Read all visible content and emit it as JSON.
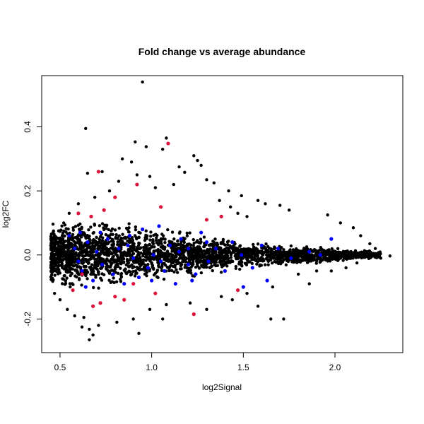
{
  "chart_data": {
    "type": "scatter",
    "title": "Fold change vs average abundance",
    "xlabel": "log2Signal",
    "ylabel": "log2FC",
    "xlim": [
      0.4,
      2.37
    ],
    "ylim": [
      -0.305,
      0.56
    ],
    "xticks": [
      0.5,
      1.0,
      1.5,
      2.0
    ],
    "xtick_labels": [
      "0.5",
      "1.0",
      "1.5",
      "2.0"
    ],
    "yticks": [
      -0.2,
      0.0,
      0.2,
      0.4
    ],
    "ytick_labels": [
      "-0.2",
      "0.0",
      "0.2",
      "0.4"
    ],
    "grid": false,
    "legend": "none",
    "colors": {
      "background": "#cd853f",
      "blue": "#0000ff",
      "red": "#dc143c"
    },
    "series": [
      {
        "color": "#000000",
        "points": [
          [
            0.95,
            0.54
          ],
          [
            0.64,
            0.395
          ],
          [
            1.08,
            0.365
          ],
          [
            0.91,
            0.353
          ],
          [
            0.97,
            0.338
          ],
          [
            1.23,
            0.31
          ],
          [
            0.84,
            0.3
          ],
          [
            1.06,
            0.33
          ],
          [
            0.89,
            0.29
          ],
          [
            1.25,
            0.295
          ],
          [
            1.27,
            0.28
          ],
          [
            1.15,
            0.275
          ],
          [
            0.73,
            0.26
          ],
          [
            0.65,
            0.255
          ],
          [
            1.18,
            0.258
          ],
          [
            0.99,
            0.245
          ],
          [
            1.3,
            0.235
          ],
          [
            0.92,
            0.25
          ],
          [
            1.34,
            0.225
          ],
          [
            1.42,
            0.2
          ],
          [
            1.49,
            0.185
          ],
          [
            1.58,
            0.17
          ],
          [
            1.62,
            0.16
          ],
          [
            1.7,
            0.155
          ],
          [
            1.75,
            0.14
          ],
          [
            1.96,
            0.125
          ],
          [
            2.03,
            0.1
          ],
          [
            1.52,
            0.12
          ],
          [
            1.47,
            0.13
          ],
          [
            0.6,
            0.16
          ],
          [
            0.55,
            0.13
          ],
          [
            0.52,
            0.1
          ],
          [
            0.48,
            0.05
          ],
          [
            0.45,
            0.03
          ],
          [
            2.1,
            0.085
          ],
          [
            2.14,
            0.06
          ],
          [
            2.19,
            0.035
          ],
          [
            2.22,
            0.02
          ],
          [
            2.3,
            -0.003
          ],
          [
            2.25,
            -0.01
          ],
          [
            2.12,
            -0.025
          ],
          [
            1.9,
            -0.05
          ],
          [
            1.8,
            -0.06
          ],
          [
            1.66,
            -0.1
          ],
          [
            1.65,
            -0.2
          ],
          [
            1.72,
            -0.2
          ],
          [
            1.58,
            -0.16
          ],
          [
            1.44,
            -0.14
          ],
          [
            1.3,
            -0.17
          ],
          [
            1.21,
            -0.15
          ],
          [
            1.08,
            -0.155
          ],
          [
            0.99,
            -0.17
          ],
          [
            0.9,
            -0.2
          ],
          [
            0.81,
            -0.21
          ],
          [
            0.71,
            -0.22
          ],
          [
            0.66,
            -0.232
          ],
          [
            0.68,
            -0.25
          ],
          [
            0.66,
            -0.265
          ],
          [
            0.63,
            -0.195
          ],
          [
            0.58,
            -0.19
          ],
          [
            0.54,
            -0.17
          ],
          [
            0.5,
            -0.14
          ],
          [
            0.47,
            -0.12
          ],
          [
            0.46,
            -0.08
          ],
          [
            0.45,
            -0.04
          ],
          [
            0.62,
            -0.225
          ],
          [
            0.93,
            -0.245
          ],
          [
            1.06,
            -0.2
          ],
          [
            1.38,
            -0.13
          ],
          [
            1.52,
            -0.12
          ],
          [
            1.86,
            -0.09
          ],
          [
            1.98,
            -0.05
          ],
          [
            2.06,
            -0.04
          ],
          [
            1.43,
            0.15
          ],
          [
            1.37,
            0.17
          ],
          [
            1.12,
            0.22
          ],
          [
            1.02,
            0.21
          ],
          [
            0.82,
            0.23
          ],
          [
            0.77,
            0.2
          ],
          [
            0.69,
            0.18
          ]
        ]
      },
      {
        "color": "#0000ff",
        "points": [
          [
            0.55,
            0.06
          ],
          [
            0.58,
            0.02
          ],
          [
            0.6,
            -0.02
          ],
          [
            0.62,
            -0.05
          ],
          [
            0.65,
            0.04
          ],
          [
            0.68,
            -0.08
          ],
          [
            0.7,
            0.01
          ],
          [
            0.73,
            -0.03
          ],
          [
            0.76,
            0.05
          ],
          [
            0.79,
            -0.06
          ],
          [
            0.82,
            0.02
          ],
          [
            0.85,
            -0.09
          ],
          [
            0.88,
            0.06
          ],
          [
            0.9,
            -0.01
          ],
          [
            0.93,
            -0.07
          ],
          [
            0.95,
            0.08
          ],
          [
            0.98,
            -0.04
          ],
          [
            1.01,
            0.0
          ],
          [
            1.04,
            0.09
          ],
          [
            1.07,
            -0.05
          ],
          [
            1.1,
            0.03
          ],
          [
            1.13,
            -0.09
          ],
          [
            1.16,
            0.05
          ],
          [
            1.2,
            -0.03
          ],
          [
            1.24,
            -0.06
          ],
          [
            1.27,
            0.07
          ],
          [
            1.31,
            -0.02
          ],
          [
            1.35,
            0.02
          ],
          [
            1.4,
            -0.05
          ],
          [
            1.44,
            0.04
          ],
          [
            1.49,
            0.0
          ],
          [
            1.55,
            -0.04
          ],
          [
            1.6,
            0.03
          ],
          [
            1.63,
            -0.08
          ],
          [
            1.69,
            0.02
          ],
          [
            1.76,
            -0.01
          ],
          [
            1.86,
            0.01
          ],
          [
            1.92,
            0.0
          ],
          [
            1.98,
            0.05
          ],
          [
            1.5,
            -0.1
          ],
          [
            1.3,
            0.04
          ],
          [
            1.2,
            0.02
          ],
          [
            1.05,
            -0.02
          ],
          [
            0.87,
            0.03
          ],
          [
            0.72,
            0.07
          ],
          [
            0.64,
            -0.1
          ],
          [
            0.61,
            0.07
          ],
          [
            1.22,
            -0.08
          ],
          [
            1.0,
            -0.08
          ],
          [
            1.15,
            0.01
          ]
        ]
      },
      {
        "color": "#dc143c",
        "points": [
          [
            1.09,
            0.348
          ],
          [
            0.71,
            0.26
          ],
          [
            0.92,
            0.22
          ],
          [
            0.8,
            0.18
          ],
          [
            0.67,
            0.12
          ],
          [
            0.74,
            0.14
          ],
          [
            0.6,
            0.13
          ],
          [
            1.3,
            0.11
          ],
          [
            1.38,
            0.12
          ],
          [
            1.05,
            0.15
          ],
          [
            1.23,
            -0.185
          ],
          [
            1.47,
            -0.11
          ],
          [
            0.57,
            -0.11
          ],
          [
            0.72,
            -0.15
          ],
          [
            0.68,
            -0.16
          ],
          [
            0.85,
            -0.14
          ],
          [
            0.8,
            -0.13
          ],
          [
            1.02,
            -0.12
          ],
          [
            0.9,
            -0.09
          ],
          [
            0.62,
            -0.06
          ]
        ]
      }
    ],
    "dense_band": {
      "x_start": 0.45,
      "x_end": 2.25,
      "center": 0.0,
      "half_widths": [
        [
          0.5,
          0.12
        ],
        [
          0.6,
          0.13
        ],
        [
          0.7,
          0.13
        ],
        [
          0.8,
          0.12
        ],
        [
          0.9,
          0.11
        ],
        [
          1.0,
          0.1
        ],
        [
          1.1,
          0.09
        ],
        [
          1.2,
          0.08
        ],
        [
          1.3,
          0.07
        ],
        [
          1.4,
          0.06
        ],
        [
          1.5,
          0.05
        ],
        [
          1.6,
          0.045
        ],
        [
          1.7,
          0.04
        ],
        [
          1.8,
          0.035
        ],
        [
          1.9,
          0.03
        ],
        [
          2.0,
          0.025
        ],
        [
          2.1,
          0.02
        ],
        [
          2.2,
          0.015
        ]
      ]
    }
  }
}
